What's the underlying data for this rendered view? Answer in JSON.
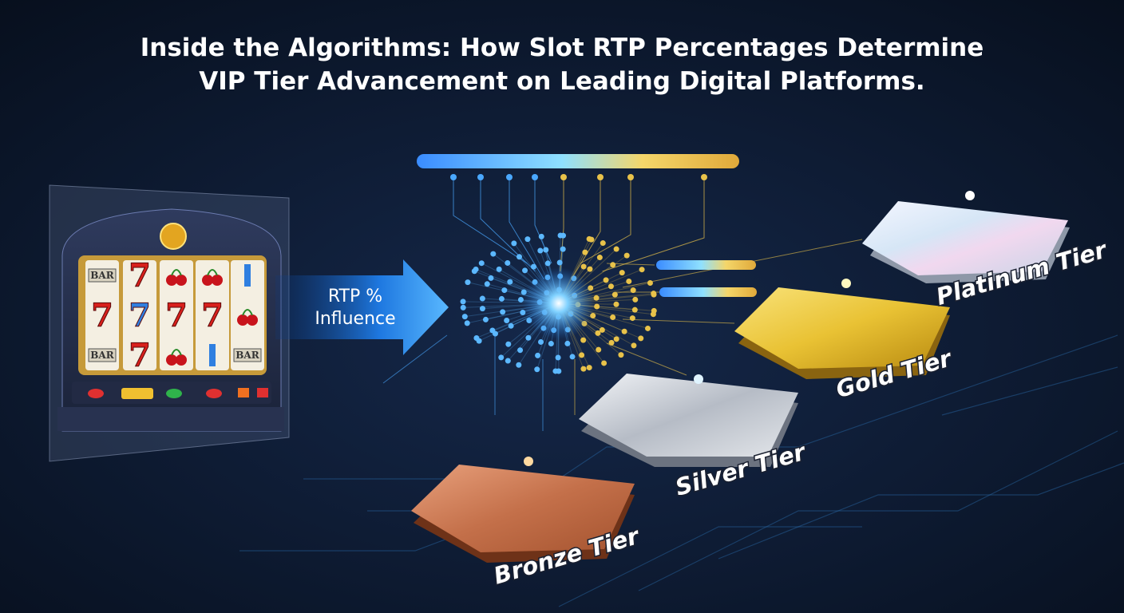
{
  "title": {
    "lines": [
      "Inside the Algorithms: How Slot RTP Percentages Determine",
      "VIP Tier Advancement on Leading Digital Platforms."
    ]
  },
  "arrow": {
    "lines": [
      "RTP %",
      "Influence"
    ]
  },
  "slot_machine": {
    "symbols": [
      "BAR",
      "7",
      "7",
      "7",
      "7",
      "7",
      "BAR",
      "7",
      "BAR"
    ]
  },
  "tiers": [
    "Platinum Tier",
    "Gold Tier",
    "Silver Tier",
    "Bronze Tier"
  ]
}
